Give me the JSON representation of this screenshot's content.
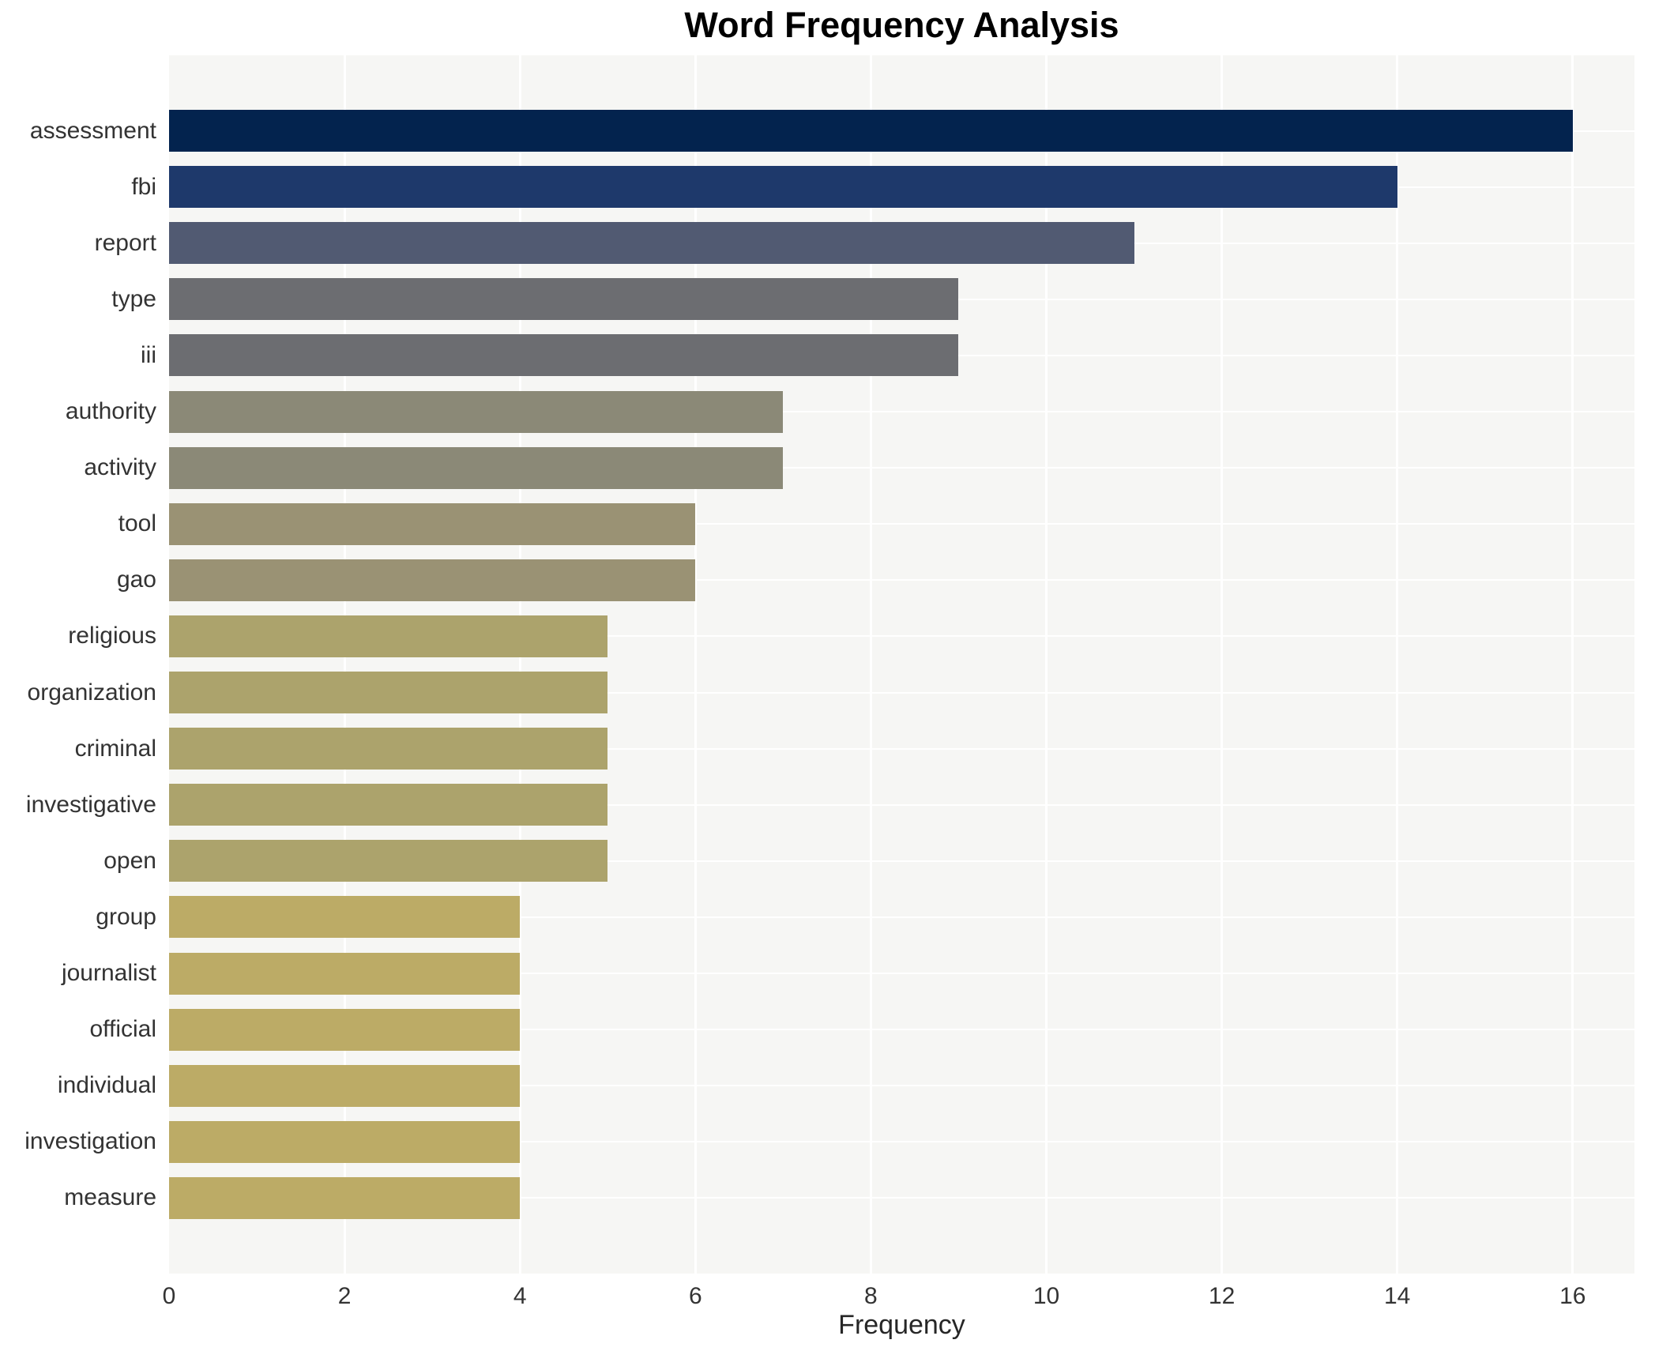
{
  "title": "Word Frequency Analysis",
  "xlabel": "Frequency",
  "colors": {
    "background": "#ffffff",
    "panel_background": "#f6f6f4",
    "gridline": "#ffffff",
    "title_text": "#000000",
    "label_text": "#333333"
  },
  "chart_data": {
    "type": "bar",
    "orientation": "horizontal",
    "title": "Word Frequency Analysis",
    "xlabel": "Frequency",
    "ylabel": "",
    "categories": [
      "assessment",
      "fbi",
      "report",
      "type",
      "iii",
      "authority",
      "activity",
      "tool",
      "gao",
      "religious",
      "organization",
      "criminal",
      "investigative",
      "open",
      "group",
      "journalist",
      "official",
      "individual",
      "investigation",
      "measure"
    ],
    "values": [
      16,
      14,
      11,
      9,
      9,
      7,
      7,
      6,
      6,
      5,
      5,
      5,
      5,
      5,
      4,
      4,
      4,
      4,
      4,
      4
    ],
    "bar_colors": [
      "#03234e",
      "#1e396b",
      "#515a72",
      "#6c6d71",
      "#6c6d71",
      "#8b8977",
      "#8b8977",
      "#9a9274",
      "#9a9274",
      "#aca36c",
      "#aca36c",
      "#aca36c",
      "#aca36c",
      "#aca36c",
      "#bcab66",
      "#bcab66",
      "#bcab66",
      "#bcab66",
      "#bcab66",
      "#bcab66"
    ],
    "xlim": [
      0,
      16.7
    ],
    "xticks": [
      "0",
      "2",
      "4",
      "6",
      "8",
      "10",
      "12",
      "14",
      "16"
    ],
    "xtick_values": [
      0,
      2,
      4,
      6,
      8,
      10,
      12,
      14,
      16
    ],
    "grid": "on",
    "grid_style": "white major vertical lines every 2 units; white horizontal line at each category center",
    "legend": "none"
  }
}
